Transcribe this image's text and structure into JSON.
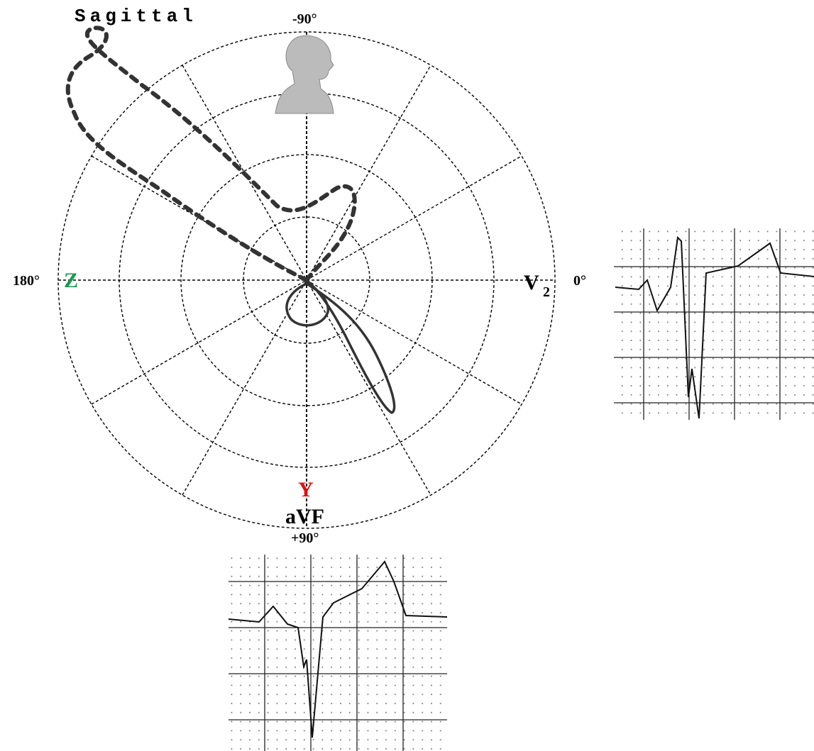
{
  "title": "Sagittal",
  "angles": {
    "top": "-90°",
    "left": "180°",
    "right": "0°",
    "bottom": "+90°"
  },
  "leads": {
    "z": "Z",
    "v2": "V",
    "v2_sub": "2",
    "y": "Y",
    "avf": "aVF"
  }
}
